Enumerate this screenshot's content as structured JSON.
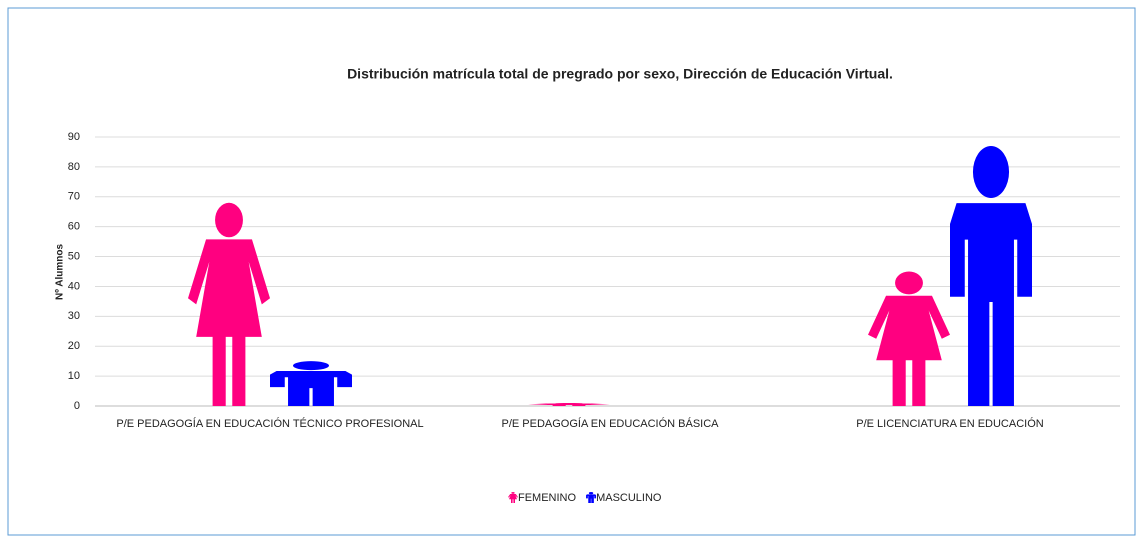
{
  "chart_data": {
    "type": "bar",
    "title": "Distribución matrícula total de pregrado por sexo, Dirección de Educación Virtual.",
    "y_label": "Nº Alumnos",
    "categories": [
      "P/E PEDAGOGÍA  EN EDUCACIÓN TÉCNICO PROFESIONAL",
      "P/E PEDAGOGÍA EN EDUCACIÓN BÁSICA",
      "P/E LICENCIATURA EN EDUCACIÓN"
    ],
    "series": [
      {
        "name": "FEMENINO",
        "color": "#ff0080",
        "values": [
          68,
          1,
          45
        ]
      },
      {
        "name": "MASCULINO",
        "color": "#0000ff",
        "values": [
          15,
          0,
          87
        ]
      }
    ],
    "ylim": [
      0,
      90
    ],
    "yticks": [
      0,
      10,
      20,
      30,
      40,
      50,
      60,
      70,
      80,
      90
    ],
    "grid": true,
    "legend": "bottom"
  }
}
